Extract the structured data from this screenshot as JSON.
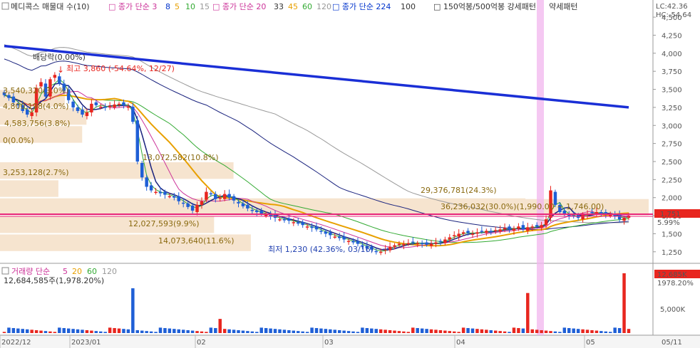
{
  "legend": {
    "checkbox_icon": "checkbox-icon",
    "items": [
      {
        "label": "메디콕스 매물대 수(10)",
        "color": "#333333"
      },
      {
        "label": "종가 단순 3",
        "color": "#cc3399"
      },
      {
        "label": "8",
        "color": "#0033cc"
      },
      {
        "label": "5",
        "color": "#e8a000"
      },
      {
        "label": "10",
        "color": "#33aa33"
      },
      {
        "label": "15",
        "color": "#999999"
      },
      {
        "label": "종가 단순 20",
        "color": "#cc3399"
      },
      {
        "label": "33",
        "color": "#333333"
      },
      {
        "label": "45",
        "color": "#e8a000"
      },
      {
        "label": "60",
        "color": "#33aa33"
      },
      {
        "label": "120",
        "color": "#999999"
      },
      {
        "label": "종가 단순 224",
        "color": "#0033cc"
      },
      {
        "label": "100",
        "color": "#333333"
      },
      {
        "label": "150억봉/500억봉 강세패턴",
        "color": "#333333"
      },
      {
        "label": "약세패턴",
        "color": "#333333"
      }
    ]
  },
  "top_right": {
    "lc": "LC:42.36",
    "hc": "HC:-54.64"
  },
  "y_axis_price": [
    "4,500",
    "4,250",
    "4,000",
    "3,750",
    "3,500",
    "3,250",
    "3,000",
    "2,750",
    "2,500",
    "2,250",
    "2,000",
    "1,750",
    "1,500",
    "1,250"
  ],
  "current_price_tag": "1,751",
  "price_change_tag": "5.99%",
  "x_axis_dates": [
    "2022/12",
    "2023/01",
    "02",
    "03",
    "04",
    "05",
    "05/11"
  ],
  "annotations": {
    "dividend": "배당락(0.00%)",
    "high": "최고 3,860 (-54.64%, 12/27)",
    "low": "최저 1,230 (42.36%, 03/16)"
  },
  "volume_profile_labels": [
    "3,540,320(3.0%)",
    "4,800,198(4.0%)",
    "4,583,756(3.8%)",
    "0(0.0%)",
    "13,072,582(10.8%)",
    "3,253,128(2.7%)",
    "29,376,781(24.3%)",
    "36,236,032(30.0%)(1,990.00 ~ 1,746.00)",
    "12,027,593(9.9%)",
    "14,073,640(11.6%)"
  ],
  "volume_legend": {
    "title": "거래량 단순",
    "periods": [
      {
        "label": "5",
        "color": "#cc3399"
      },
      {
        "label": "20",
        "color": "#e8a000"
      },
      {
        "label": "60",
        "color": "#33aa33"
      },
      {
        "label": "120",
        "color": "#999999"
      }
    ],
    "value_text": "12,684,585주(1,978.20%)"
  },
  "volume_tags": {
    "value": "12,685K",
    "pct": "1978.20%",
    "axis_5000": "5,000K"
  },
  "colors": {
    "up": "#e8261f",
    "down": "#1f5fd6",
    "ma224": "#1a2fd6",
    "ma_pink": "#cc3399",
    "ma_orange": "#e8a000",
    "ma_green": "#33aa33",
    "ma_gray": "#999999",
    "ma_navy": "#1a237e",
    "highlight": "#f0a0e8",
    "current_line": "#e8267a",
    "profile": "#f6e4cf"
  },
  "chart_data": {
    "type": "candlestick",
    "title": "메디콕스",
    "y_axis_range": [
      1100,
      4560
    ],
    "y_ticks": [
      4500,
      4250,
      4000,
      3750,
      3500,
      3250,
      3000,
      2750,
      2500,
      2250,
      2000,
      1750,
      1500,
      1250
    ],
    "x_labels": [
      "2022/12",
      "2023/01",
      "02",
      "03",
      "04",
      "05"
    ],
    "current_price": 1751,
    "high": {
      "value": 3860,
      "date": "12/27"
    },
    "low": {
      "value": 1230,
      "date": "03/16"
    },
    "close_series": [
      3420,
      3380,
      3320,
      3280,
      3200,
      3150,
      3180,
      3520,
      3600,
      3400,
      3640,
      3700,
      3580,
      3480,
      3350,
      3250,
      3200,
      3150,
      3180,
      3300,
      3280,
      3260,
      3250,
      3270,
      3290,
      3300,
      3280,
      3260,
      3050,
      2500,
      2280,
      2150,
      2100,
      2080,
      2060,
      2040,
      2020,
      2000,
      1950,
      1920,
      1870,
      1820,
      1900,
      1950,
      2080,
      2050,
      1980,
      2000,
      2050,
      2000,
      1960,
      1920,
      1880,
      1850,
      1820,
      1800,
      1780,
      1760,
      1740,
      1720,
      1700,
      1690,
      1680,
      1660,
      1640,
      1620,
      1600,
      1580,
      1560,
      1530,
      1500,
      1480,
      1460,
      1440,
      1420,
      1400,
      1380,
      1360,
      1330,
      1300,
      1280,
      1250,
      1250,
      1290,
      1320,
      1340,
      1360,
      1360,
      1370,
      1380,
      1370,
      1360,
      1350,
      1360,
      1380,
      1390,
      1420,
      1450,
      1480,
      1500,
      1520,
      1510,
      1500,
      1520,
      1530,
      1540,
      1530,
      1550,
      1560,
      1580,
      1560,
      1570,
      1600,
      1560,
      1590,
      1600,
      1600,
      1620,
      1700,
      2100,
      1900,
      1800,
      1780,
      1750,
      1740,
      1720,
      1760,
      1780,
      1790,
      1800,
      1780,
      1770,
      1760,
      1740,
      1700,
      1720,
      1751
    ],
    "ma224": {
      "start": 4100,
      "end": 3250
    },
    "volume_profile": [
      {
        "price_range": [
          3250,
          3500
        ],
        "volume": 3540320,
        "pct": 3.0
      },
      {
        "price_range": [
          3000,
          3250
        ],
        "volume": 4800198,
        "pct": 4.0
      },
      {
        "price_range": [
          2750,
          3000
        ],
        "volume": 4583756,
        "pct": 3.8
      },
      {
        "price_range": [
          2500,
          2750
        ],
        "volume": 0,
        "pct": 0.0
      },
      {
        "price_range": [
          2250,
          2500
        ],
        "volume": 13072582,
        "pct": 10.8
      },
      {
        "price_range": [
          2000,
          2250
        ],
        "volume": 3253128,
        "pct": 2.7
      },
      {
        "price_range": [
          1900,
          2000
        ],
        "volume": 29376781,
        "pct": 24.3
      },
      {
        "price_range": [
          1746,
          1990
        ],
        "volume": 36236032,
        "pct": 30.0
      },
      {
        "price_range": [
          1500,
          1746
        ],
        "volume": 12027593,
        "pct": 9.9
      },
      {
        "price_range": [
          1250,
          1500
        ],
        "volume": 14073640,
        "pct": 11.6
      }
    ],
    "volume": {
      "latest": 12684585,
      "latest_pct": 1978.2,
      "spikes": [
        {
          "index": 28,
          "value": 9500000
        },
        {
          "index": 47,
          "value": 3000000
        },
        {
          "index": 114,
          "value": 8500000
        },
        {
          "index": 135,
          "value": 12684585
        }
      ]
    }
  }
}
